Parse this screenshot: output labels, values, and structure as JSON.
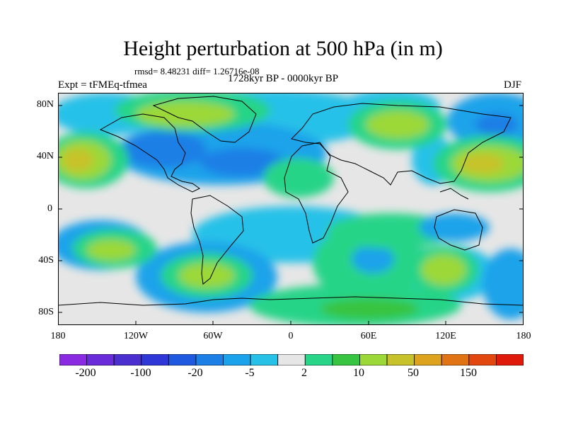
{
  "title": "Height perturbation at 500 hPa (in m)",
  "stats": "rmsd= 8.48231 diff= 1.26716e-08",
  "expt": "Expt = tFMEq-tfmea",
  "period": "1728kyr BP - 0000kyr BP",
  "season": "DJF",
  "lat_ticks": [
    "80N",
    "40N",
    "0",
    "40S",
    "80S"
  ],
  "lon_ticks": [
    "180",
    "120W",
    "60W",
    "0",
    "60E",
    "120E",
    "180"
  ],
  "colorbar": {
    "colors": [
      "#8a2be2",
      "#6a2bd8",
      "#4b2fcf",
      "#2f37d6",
      "#1f59e0",
      "#1c7fe6",
      "#1aa3ea",
      "#27c1e8",
      "#e6e6e6",
      "#28d488",
      "#37c440",
      "#9bd838",
      "#c8c22a",
      "#dda21e",
      "#e07414",
      "#e2470e",
      "#e01a0a"
    ],
    "labels": [
      "-200",
      "-100",
      "-20",
      "-5",
      "2",
      "10",
      "50",
      "150"
    ]
  },
  "map_colors": {
    "ocean_bg": "#e6e6e6",
    "pos1": "#28d488",
    "pos2": "#37c440",
    "pos3": "#9bd838",
    "pos4": "#c8c22a",
    "neg1": "#27c1e8",
    "neg2": "#1aa3ea",
    "neg3": "#1c7fe6"
  }
}
